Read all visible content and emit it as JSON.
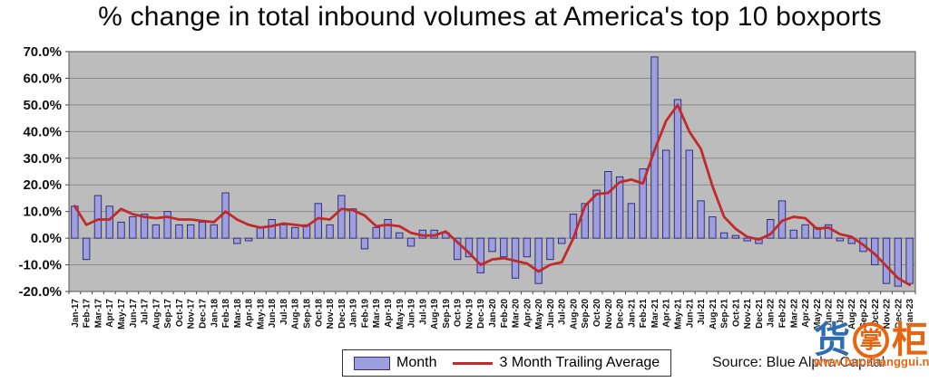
{
  "title": "% change in total inbound volumes at America's top 10 boxports",
  "source_note": "Source: Blue Alpha Capital",
  "legend": {
    "month_label": "Month",
    "trailing_label": "3 Month Trailing Average"
  },
  "watermark": {
    "char_1": "货",
    "char_2": "掌",
    "char_3": "柜",
    "url": "www.huozhanggui.net"
  },
  "colors": {
    "bar_fill": "#9f9fe0",
    "bar_border": "#30307a",
    "line": "#c02a2a",
    "plot_bg": "#bcbcbc",
    "grid": "#8a8a8a",
    "plot_border": "#555555",
    "tick": "#444444",
    "watermark_blue": "#2e6db4",
    "watermark_orange": "#e8650f"
  },
  "chart_data": {
    "type": "bar",
    "title": "% change in total inbound volumes at America's top 10 boxports",
    "xlabel": "",
    "ylabel": "",
    "ylim": [
      -20,
      70
    ],
    "grid": true,
    "legend_position": "bottom",
    "ytick_labels": [
      "70.0%",
      "60.0%",
      "50.0%",
      "40.0%",
      "30.0%",
      "20.0%",
      "10.0%",
      "0.0%",
      "-10.0%",
      "-20.0%"
    ],
    "categories": [
      "Jan-17",
      "Feb-17",
      "Mar-17",
      "Apr-17",
      "May-17",
      "Jun-17",
      "Jul-17",
      "Aug-17",
      "Sep-17",
      "Oct-17",
      "Nov-17",
      "Dec-17",
      "Jan-18",
      "Feb-18",
      "Mar-18",
      "Apr-18",
      "May-18",
      "Jun-18",
      "Jul-18",
      "Aug-18",
      "Sep-18",
      "Oct-18",
      "Nov-18",
      "Dec-18",
      "Jan-19",
      "Feb-19",
      "Mar-19",
      "Apr-19",
      "May-19",
      "Jun-19",
      "Jul-19",
      "Aug-19",
      "Sep-19",
      "Oct-19",
      "Nov-19",
      "Dec-19",
      "Jan-20",
      "Feb-20",
      "Mar-20",
      "Apr-20",
      "May-20",
      "Jun-20",
      "Jul-20",
      "Aug-20",
      "Sep-20",
      "Oct-20",
      "Nov-20",
      "Dec-20",
      "Jan-21",
      "Feb-21",
      "Mar-21",
      "Apr-21",
      "May-21",
      "Jun-21",
      "Jul-21",
      "Aug-21",
      "Sep-21",
      "Oct-21",
      "Nov-21",
      "Dec-21",
      "Jan-22",
      "Feb-22",
      "Mar-22",
      "Apr-22",
      "May-22",
      "Jun-22",
      "Jul-22",
      "Aug-22",
      "Sep-22",
      "Oct-22",
      "Nov-22",
      "Dec-22",
      "Jan-23"
    ],
    "series": [
      {
        "name": "Month",
        "type": "bar",
        "values": [
          12,
          -8,
          16,
          12,
          6,
          8,
          9,
          5,
          10,
          5,
          5,
          6,
          5,
          17,
          -2,
          -1,
          4,
          7,
          5,
          4,
          5,
          13,
          5,
          16,
          11,
          -4,
          4,
          7,
          2,
          -3,
          3,
          3,
          2,
          -8,
          -7,
          -13,
          -5,
          -7,
          -15,
          -7,
          -17,
          -8,
          -2,
          9,
          13,
          18,
          25,
          23,
          13,
          26,
          68,
          33,
          52,
          33,
          14,
          8,
          2,
          1,
          -1,
          -2,
          7,
          14,
          3,
          5,
          4,
          5,
          -1,
          -2,
          -5,
          -10,
          -17,
          -18,
          -17
        ]
      },
      {
        "name": "3 Month Trailing Average",
        "type": "line",
        "values": [
          12,
          5,
          7,
          7,
          11,
          9,
          8,
          7.5,
          8,
          7,
          7,
          6.5,
          6,
          10,
          7,
          5,
          4,
          4.5,
          5.5,
          5,
          4.5,
          7.5,
          7,
          11,
          10.5,
          8.5,
          4.5,
          5,
          4.5,
          2,
          1,
          1,
          2.5,
          -1.5,
          -5.5,
          -10,
          -8,
          -7.5,
          -8.5,
          -9.5,
          -12.5,
          -10,
          -9,
          0,
          12,
          16.5,
          17,
          21,
          22,
          20.5,
          33,
          44,
          50,
          40,
          33.5,
          19.5,
          8,
          3.5,
          0.5,
          -0.5,
          1.5,
          6.5,
          8,
          7.5,
          3.5,
          4,
          1.5,
          0.5,
          -2.5,
          -6,
          -10.5,
          -15,
          -17.5
        ]
      }
    ]
  }
}
